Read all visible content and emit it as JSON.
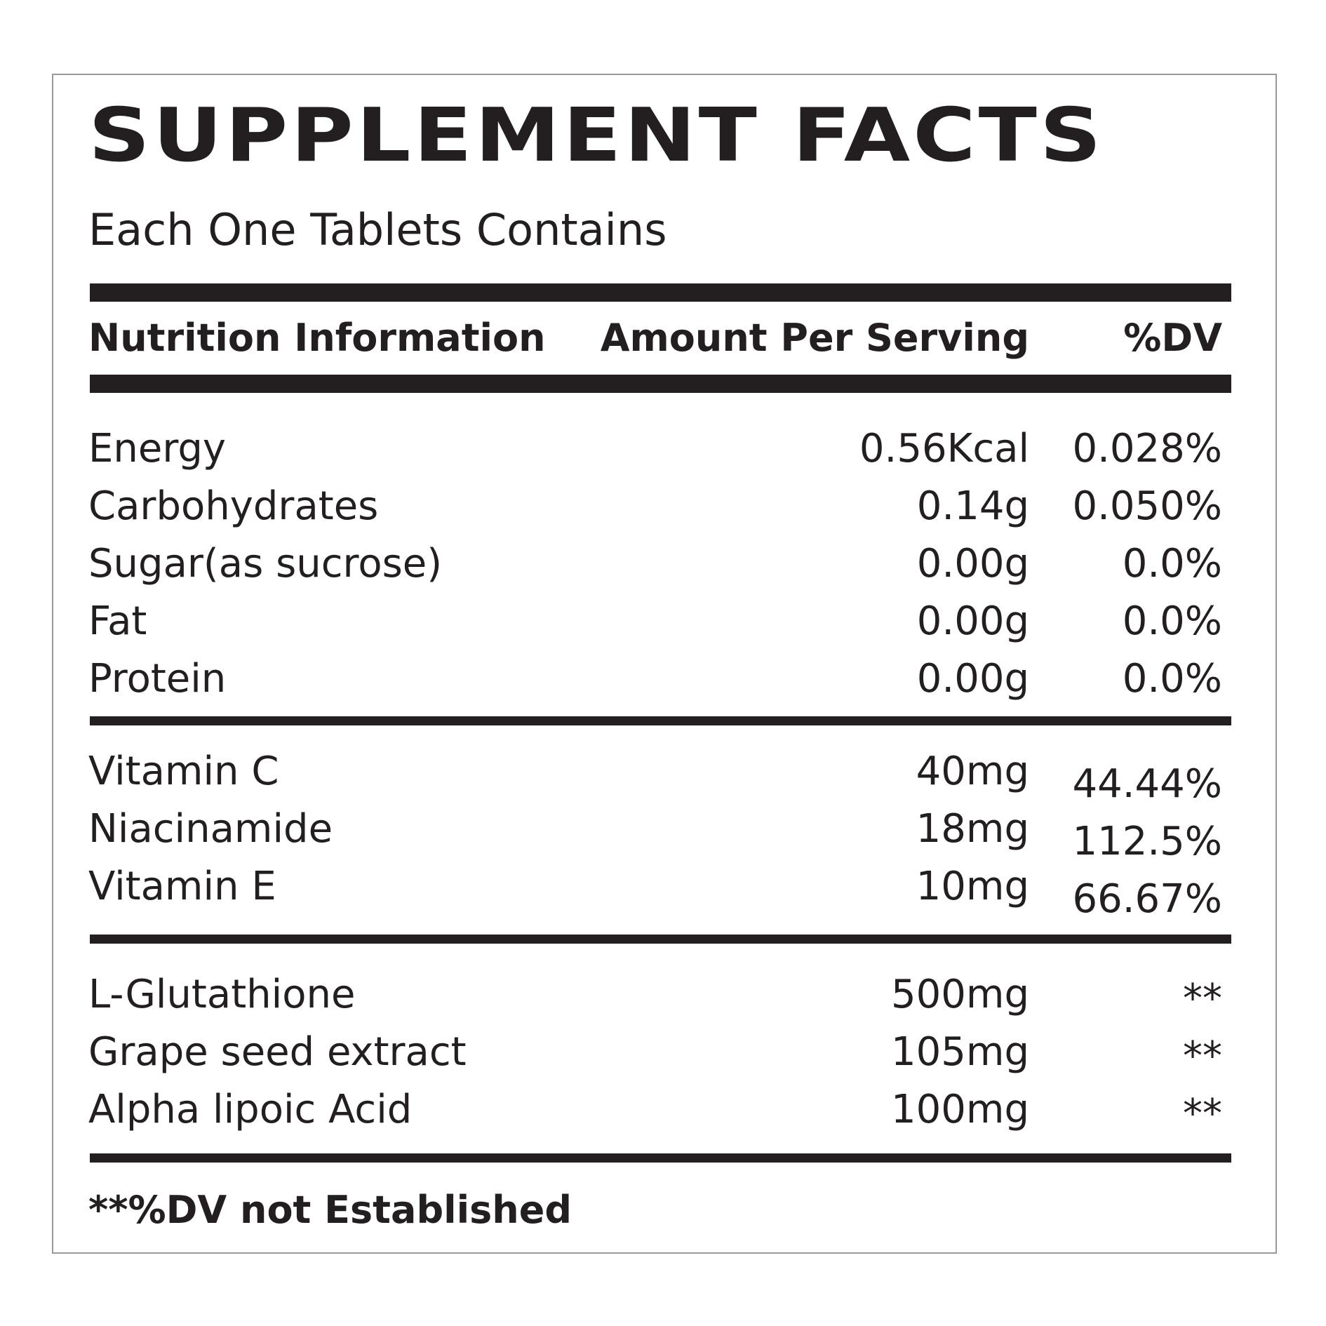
{
  "title": "SUPPLEMENT FACTS",
  "subtitle": "Each One Tablets Contains",
  "header": {
    "name": "Nutrition Information",
    "amount": "Amount Per Serving",
    "dv": "%DV"
  },
  "sections": [
    {
      "rows": [
        {
          "name": "Energy",
          "amount": "0.56Kcal",
          "dv": "0.028%"
        },
        {
          "name": "Carbohydrates",
          "amount": "0.14g",
          "dv": "0.050%"
        },
        {
          "name": "Sugar(as sucrose)",
          "amount": "0.00g",
          "dv": "0.0%"
        },
        {
          "name": "Fat",
          "amount": "0.00g",
          "dv": "0.0%"
        },
        {
          "name": "Protein",
          "amount": "0.00g",
          "dv": "0.0%"
        }
      ]
    },
    {
      "rows": [
        {
          "name": "Vitamin C",
          "amount": "40mg",
          "dv": "44.44%"
        },
        {
          "name": "Niacinamide",
          "amount": "18mg",
          "dv": "112.5%"
        },
        {
          "name": "Vitamin E",
          "amount": "10mg",
          "dv": "66.67%"
        }
      ]
    },
    {
      "rows": [
        {
          "name": "L-Glutathione",
          "amount": "500mg",
          "dv": "**"
        },
        {
          "name": "Grape seed extract",
          "amount": "105mg",
          "dv": "**"
        },
        {
          "name": "Alpha lipoic Acid",
          "amount": "100mg",
          "dv": "**"
        }
      ]
    }
  ],
  "footnote": "**%DV not Established",
  "colors": {
    "ink": "#231f20",
    "border": "#9a9a9a",
    "background": "#ffffff"
  }
}
